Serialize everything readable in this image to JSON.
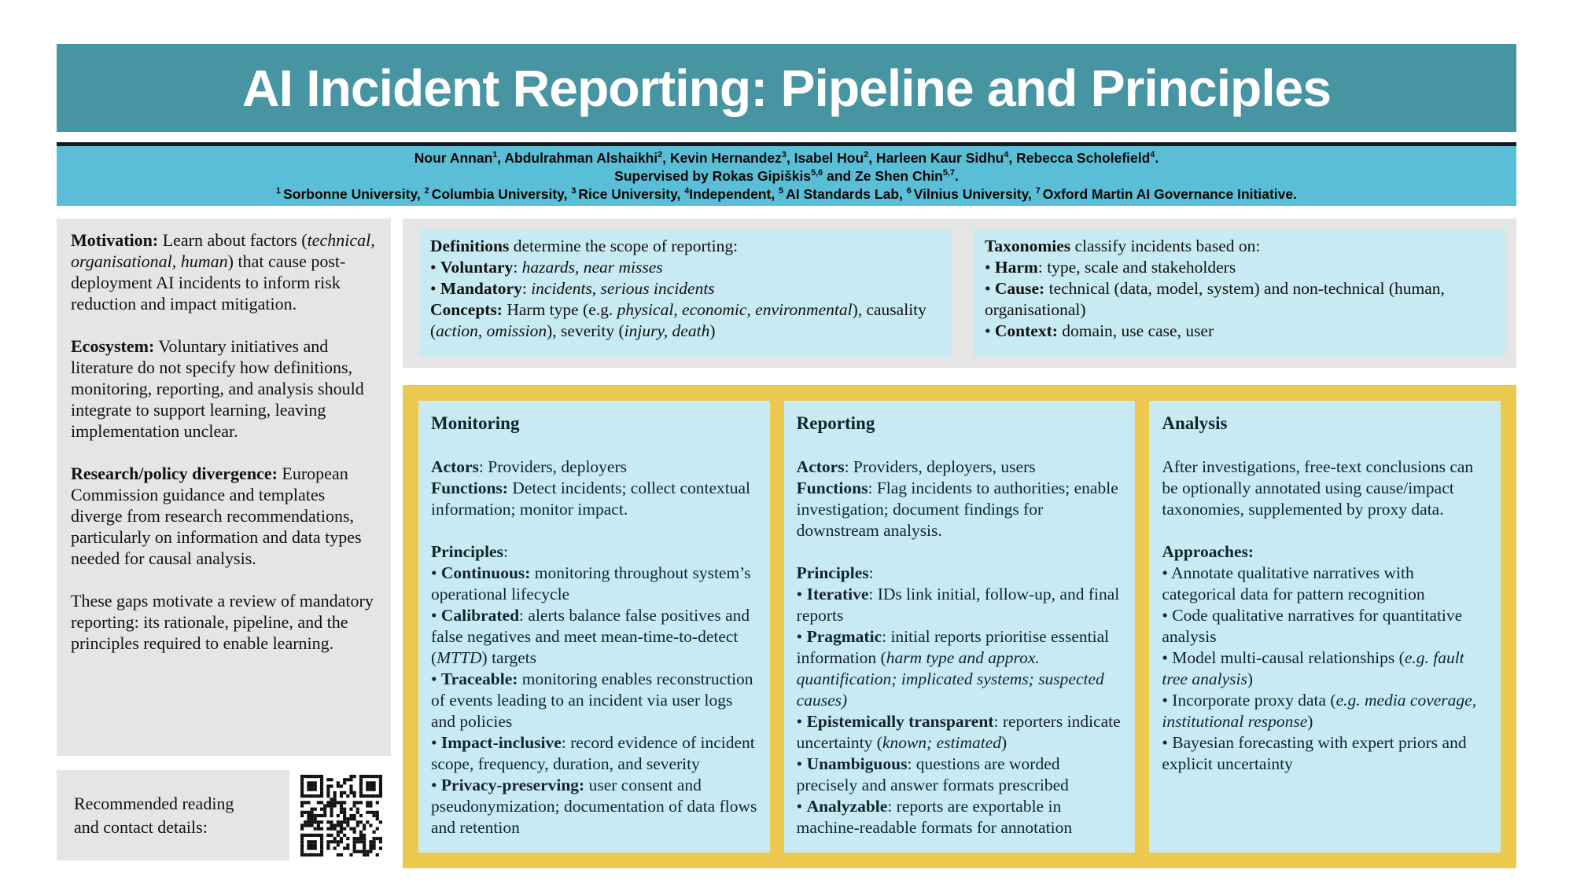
{
  "title": "AI Incident Reporting: Pipeline and Principles",
  "colors": {
    "header_teal": "#4795a3",
    "authors_blue": "#5abfd6",
    "panel_gray": "#e5e5e5",
    "box_light_blue": "#c8eaf2",
    "gold_border": "#edc84e",
    "dark_rule": "#14181c"
  },
  "authors": {
    "line1": [
      {
        "t": "Nour Annan"
      },
      {
        "t": "1",
        "sup": true
      },
      {
        "t": ", Abdulrahman Alshaikhi"
      },
      {
        "t": "2",
        "sup": true
      },
      {
        "t": ", Kevin Hernandez"
      },
      {
        "t": "3",
        "sup": true
      },
      {
        "t": ", Isabel Hou"
      },
      {
        "t": "2",
        "sup": true
      },
      {
        "t": ", Harleen Kaur Sidhu"
      },
      {
        "t": "4",
        "sup": true
      },
      {
        "t": ", Rebecca Scholefield"
      },
      {
        "t": "4",
        "sup": true
      },
      {
        "t": "."
      }
    ],
    "line2": [
      {
        "t": "Supervised by Rokas Gipiškis"
      },
      {
        "t": "5,6",
        "sup": true
      },
      {
        "t": " and Ze Shen Chin"
      },
      {
        "t": "5,7",
        "sup": true
      },
      {
        "t": "."
      }
    ],
    "line3": [
      {
        "t": "1 ",
        "sup": true
      },
      {
        "t": "Sorbonne University, "
      },
      {
        "t": "2 ",
        "sup": true
      },
      {
        "t": "Columbia University, "
      },
      {
        "t": "3 ",
        "sup": true
      },
      {
        "t": "Rice University, "
      },
      {
        "t": "4",
        "sup": true
      },
      {
        "t": "Independent, "
      },
      {
        "t": "5 ",
        "sup": true
      },
      {
        "t": "AI Standards Lab, "
      },
      {
        "t": "6 ",
        "sup": true
      },
      {
        "t": "Vilnius University, "
      },
      {
        "t": "7 ",
        "sup": true
      },
      {
        "t": "Oxford Martin AI Governance Initiative."
      }
    ]
  },
  "left_column": {
    "paragraphs": [
      {
        "segments": [
          {
            "t": "Motivation:",
            "b": true
          },
          {
            "t": " Learn about factors ("
          },
          {
            "t": "technical, organisational, human",
            "i": true
          },
          {
            "t": ") that cause post-deployment AI incidents to inform risk reduction and impact mitigation."
          }
        ]
      },
      {
        "segments": [
          {
            "t": "Ecosystem:",
            "b": true
          },
          {
            "t": " Voluntary initiatives and literature do not specify how definitions, monitoring, reporting, and analysis should integrate to support learning, leaving implementation unclear."
          }
        ]
      },
      {
        "segments": [
          {
            "t": "Research/policy divergence:",
            "b": true
          },
          {
            "t": " European Commission guidance and templates diverge from research recommendations, particularly on information and data types needed for causal analysis."
          }
        ]
      },
      {
        "segments": [
          {
            "t": "These gaps motivate a review of mandatory reporting: its rationale, pipeline, and the principles required to enable learning."
          }
        ]
      }
    ]
  },
  "definitions_box": {
    "lines": [
      {
        "segments": [
          {
            "t": "Definitions",
            "b": true
          },
          {
            "t": " determine the scope of reporting:"
          }
        ]
      },
      {
        "segments": [
          {
            "t": " • "
          },
          {
            "t": "Voluntary",
            "b": true
          },
          {
            "t": ": "
          },
          {
            "t": "hazards, near misses",
            "i": true
          }
        ]
      },
      {
        "segments": [
          {
            "t": " • "
          },
          {
            "t": "Mandatory",
            "b": true
          },
          {
            "t": ": "
          },
          {
            "t": "incidents, serious incidents",
            "i": true
          }
        ]
      },
      {
        "segments": [
          {
            "t": "Concepts:",
            "b": true
          },
          {
            "t": " Harm type (e.g. "
          },
          {
            "t": "physical, economic, environmental",
            "i": true
          },
          {
            "t": "), causality ("
          },
          {
            "t": "action, omission",
            "i": true
          },
          {
            "t": "), severity ("
          },
          {
            "t": "injury, death",
            "i": true
          },
          {
            "t": ")"
          }
        ]
      }
    ]
  },
  "taxonomies_box": {
    "lines": [
      {
        "segments": [
          {
            "t": "Taxonomies",
            "b": true
          },
          {
            "t": " classify incidents based on:"
          }
        ]
      },
      {
        "segments": [
          {
            "t": " • "
          },
          {
            "t": "Harm",
            "b": true
          },
          {
            "t": ": type, scale and stakeholders"
          }
        ]
      },
      {
        "segments": [
          {
            "t": " • "
          },
          {
            "t": "Cause:",
            "b": true
          },
          {
            "t": " technical (data, model, system) and non-technical (human, organisational)"
          }
        ]
      },
      {
        "segments": [
          {
            "t": " • "
          },
          {
            "t": "Context:",
            "b": true
          },
          {
            "t": " domain, use case, user"
          }
        ]
      }
    ]
  },
  "pipeline": {
    "columns": [
      {
        "title": "Monitoring",
        "lines": [
          {
            "segments": [
              {
                "t": "Actors",
                "b": true
              },
              {
                "t": ": Providers, deployers"
              }
            ]
          },
          {
            "segments": [
              {
                "t": "Functions:",
                "b": true
              },
              {
                "t": " Detect incidents; collect contextual information; monitor impact."
              }
            ]
          },
          {
            "gap": true,
            "segments": [
              {
                "t": "Principles",
                "b": true
              },
              {
                "t": ":"
              }
            ]
          },
          {
            "segments": [
              {
                "t": " • "
              },
              {
                "t": "Continuous:",
                "b": true
              },
              {
                "t": " monitoring throughout system’s operational lifecycle"
              }
            ]
          },
          {
            "segments": [
              {
                "t": " • "
              },
              {
                "t": "Calibrated",
                "b": true
              },
              {
                "t": ": alerts balance false positives and false negatives and meet mean-time-to-detect ("
              },
              {
                "t": "MTTD",
                "i": true
              },
              {
                "t": ") targets"
              }
            ]
          },
          {
            "segments": [
              {
                "t": " • "
              },
              {
                "t": "Traceable:",
                "b": true
              },
              {
                "t": " monitoring enables reconstruction of events leading to an incident via user logs and policies"
              }
            ]
          },
          {
            "segments": [
              {
                "t": " • "
              },
              {
                "t": "Impact-inclusive",
                "b": true
              },
              {
                "t": ": record evidence of incident scope, frequency, duration, and severity"
              }
            ]
          },
          {
            "segments": [
              {
                "t": " • "
              },
              {
                "t": "Privacy-preserving:",
                "b": true
              },
              {
                "t": " user consent and pseudonymization; documentation of data flows and retention"
              }
            ]
          }
        ]
      },
      {
        "title": "Reporting",
        "lines": [
          {
            "segments": [
              {
                "t": "Actors",
                "b": true
              },
              {
                "t": ": Providers, deployers, users"
              }
            ]
          },
          {
            "segments": [
              {
                "t": "Functions",
                "b": true
              },
              {
                "t": ": Flag incidents to authorities; enable investigation; document findings for downstream analysis."
              }
            ]
          },
          {
            "gap": true,
            "segments": [
              {
                "t": "Principles",
                "b": true
              },
              {
                "t": ":"
              }
            ]
          },
          {
            "segments": [
              {
                "t": " • "
              },
              {
                "t": "Iterative",
                "b": true
              },
              {
                "t": ": IDs link initial, follow-up, and final reports"
              }
            ]
          },
          {
            "segments": [
              {
                "t": " • "
              },
              {
                "t": "Pragmatic",
                "b": true
              },
              {
                "t": ": initial reports prioritise essential information ("
              },
              {
                "t": "harm type and approx. quantification; implicated systems; suspected causes)",
                "i": true
              }
            ]
          },
          {
            "segments": [
              {
                "t": " • "
              },
              {
                "t": "Epistemically transparent",
                "b": true
              },
              {
                "t": ": reporters indicate uncertainty ("
              },
              {
                "t": "known; estimated",
                "i": true
              },
              {
                "t": ")"
              }
            ]
          },
          {
            "segments": [
              {
                "t": " • "
              },
              {
                "t": "Unambiguous",
                "b": true
              },
              {
                "t": ": questions are worded precisely and answer formats prescribed"
              }
            ]
          },
          {
            "segments": [
              {
                "t": " • "
              },
              {
                "t": "Analyzable",
                "b": true
              },
              {
                "t": ": reports are exportable in machine-readable formats for annotation"
              }
            ]
          }
        ]
      },
      {
        "title": "Analysis",
        "lines": [
          {
            "segments": [
              {
                "t": "After investigations, free-text conclusions can be optionally annotated using cause/impact taxonomies, supplemented by proxy data."
              }
            ]
          },
          {
            "gap": true,
            "segments": [
              {
                "t": "Approaches:",
                "b": true
              }
            ]
          },
          {
            "segments": [
              {
                "t": " • Annotate qualitative narratives with categorical data for pattern recognition"
              }
            ]
          },
          {
            "segments": [
              {
                "t": " • Code qualitative narratives for quantitative analysis"
              }
            ]
          },
          {
            "segments": [
              {
                "t": " • Model multi-causal relationships ("
              },
              {
                "t": "e.g. fault tree analysis",
                "i": true
              },
              {
                "t": ")"
              }
            ]
          },
          {
            "segments": [
              {
                "t": " • Incorporate proxy data ("
              },
              {
                "t": "e.g. media coverage, institutional response",
                "i": true
              },
              {
                "t": ")"
              }
            ]
          },
          {
            "segments": [
              {
                "t": " • Bayesian forecasting with expert priors and explicit uncertainty"
              }
            ]
          }
        ]
      }
    ]
  },
  "reading_box": {
    "text": "Recommended reading\nand contact details:"
  }
}
